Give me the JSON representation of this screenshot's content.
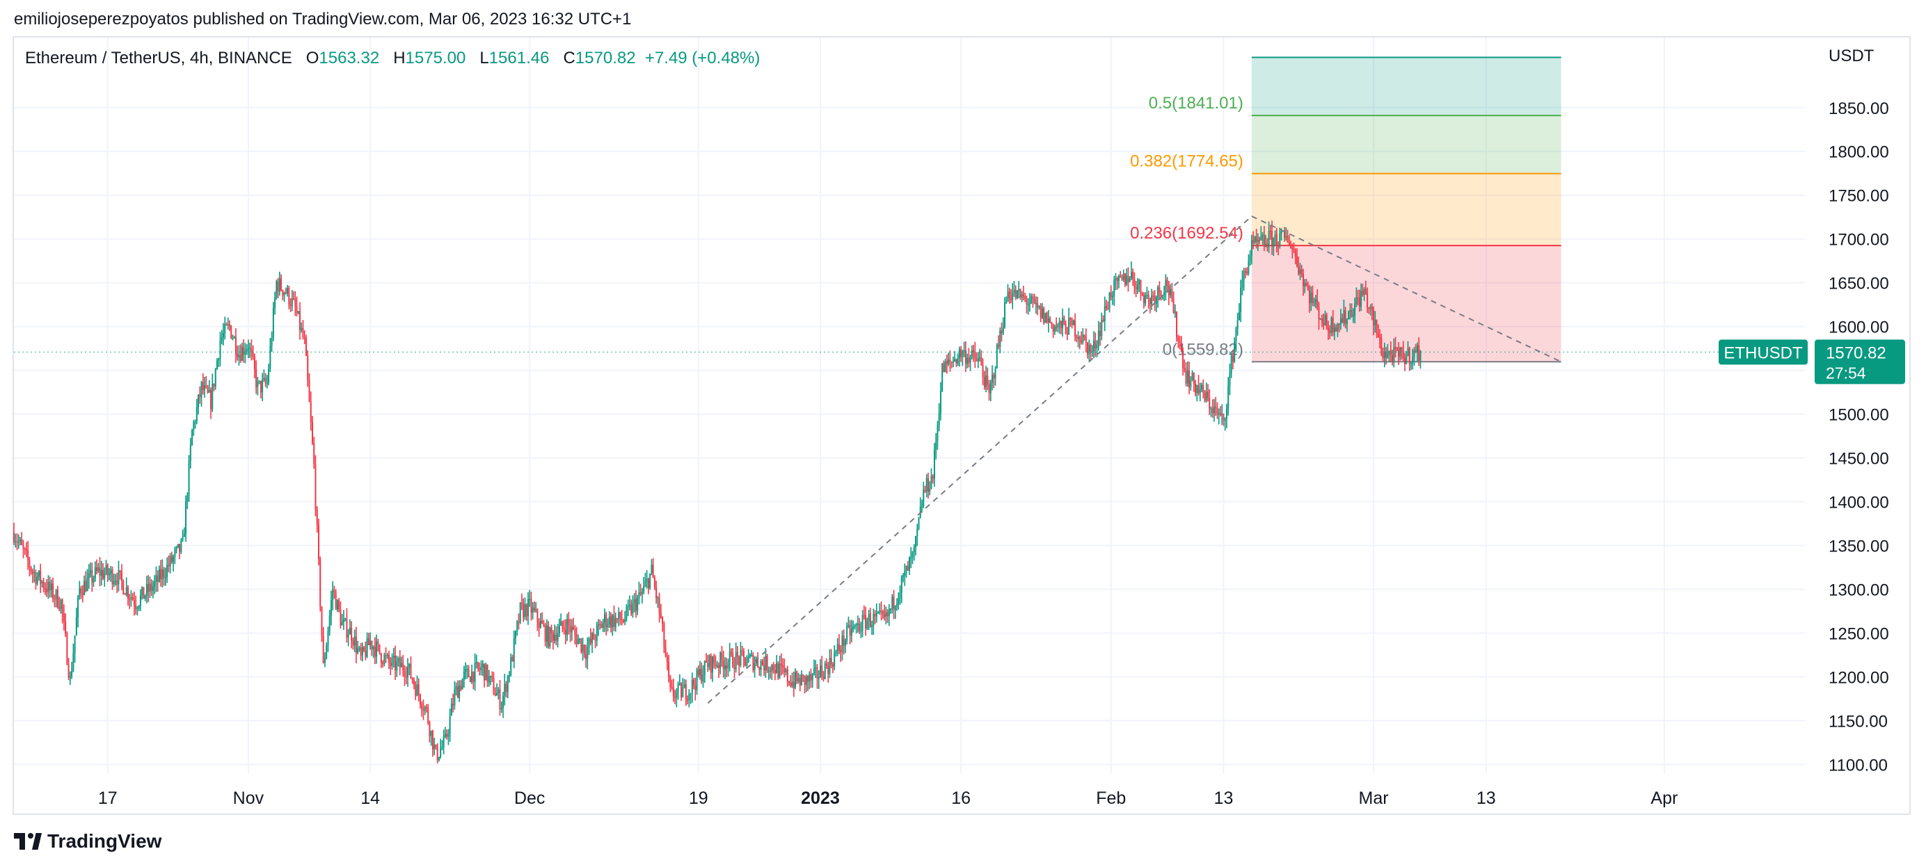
{
  "header": {
    "publisher": "emiliojoseperezpoyatos published on TradingView.com, Mar 06, 2023 16:32 UTC+1"
  },
  "legend": {
    "symbol": "Ethereum / TetherUS, 4h, BINANCE",
    "o_label": "O",
    "o": "1563.32",
    "h_label": "H",
    "h": "1575.00",
    "l_label": "L",
    "l": "1561.46",
    "c_label": "C",
    "c": "1570.82",
    "change": "+7.49 (+0.48%)"
  },
  "footer": {
    "brand": "TradingView"
  },
  "colors": {
    "up": "#089981",
    "down": "#f23645",
    "grid": "#f0f3fa",
    "fib0": "#787b86",
    "fib236": "#f23645",
    "fib382": "#ff9800",
    "fib5": "#4caf50",
    "fib618": "#089981"
  },
  "chart_data": {
    "type": "candlestick",
    "symbol": "ETHUSDT",
    "interval": "4h",
    "exchange": "BINANCE",
    "y_unit": "USDT",
    "ylim": [
      1090,
      1930
    ],
    "y_ticks": [
      "1850.00",
      "1800.00",
      "1750.00",
      "1700.00",
      "1650.00",
      "1600.00",
      "1550.00",
      "1500.00",
      "1450.00",
      "1400.00",
      "1350.00",
      "1300.00",
      "1250.00",
      "1200.00",
      "1150.00",
      "1100.00"
    ],
    "x_ticks": [
      {
        "label": "17",
        "date": "2022-10-17",
        "bold": false
      },
      {
        "label": "Nov",
        "date": "2022-11-01",
        "bold": false
      },
      {
        "label": "14",
        "date": "2022-11-14",
        "bold": false
      },
      {
        "label": "Dec",
        "date": "2022-12-01",
        "bold": false
      },
      {
        "label": "19",
        "date": "2022-12-19",
        "bold": false
      },
      {
        "label": "2023",
        "date": "2023-01-01",
        "bold": true
      },
      {
        "label": "16",
        "date": "2023-01-16",
        "bold": false
      },
      {
        "label": "Feb",
        "date": "2023-02-01",
        "bold": false
      },
      {
        "label": "13",
        "date": "2023-02-13",
        "bold": false
      },
      {
        "label": "Mar",
        "date": "2023-03-01",
        "bold": false
      },
      {
        "label": "13",
        "date": "2023-03-13",
        "bold": false
      },
      {
        "label": "Apr",
        "date": "2023-04-01",
        "bold": false
      }
    ],
    "price_path": [
      [
        "2022-10-07",
        1365
      ],
      [
        "2022-10-09",
        1320
      ],
      [
        "2022-10-12",
        1285
      ],
      [
        "2022-10-13",
        1195
      ],
      [
        "2022-10-14",
        1300
      ],
      [
        "2022-10-16",
        1320
      ],
      [
        "2022-10-18",
        1315
      ],
      [
        "2022-10-20",
        1285
      ],
      [
        "2022-10-22",
        1305
      ],
      [
        "2022-10-24",
        1335
      ],
      [
        "2022-10-25",
        1350
      ],
      [
        "2022-10-26",
        1480
      ],
      [
        "2022-10-27",
        1530
      ],
      [
        "2022-10-28",
        1515
      ],
      [
        "2022-10-29",
        1585
      ],
      [
        "2022-10-30",
        1600
      ],
      [
        "2022-10-31",
        1570
      ],
      [
        "2022-11-01",
        1580
      ],
      [
        "2022-11-02",
        1530
      ],
      [
        "2022-11-03",
        1535
      ],
      [
        "2022-11-04",
        1650
      ],
      [
        "2022-11-05",
        1640
      ],
      [
        "2022-11-06",
        1620
      ],
      [
        "2022-11-07",
        1580
      ],
      [
        "2022-11-08",
        1440
      ],
      [
        "2022-11-09",
        1210
      ],
      [
        "2022-11-10",
        1300
      ],
      [
        "2022-11-11",
        1260
      ],
      [
        "2022-11-12",
        1250
      ],
      [
        "2022-11-13",
        1220
      ],
      [
        "2022-11-14",
        1240
      ],
      [
        "2022-11-16",
        1215
      ],
      [
        "2022-11-18",
        1210
      ],
      [
        "2022-11-20",
        1160
      ],
      [
        "2022-11-21",
        1110
      ],
      [
        "2022-11-22",
        1125
      ],
      [
        "2022-11-23",
        1180
      ],
      [
        "2022-11-24",
        1200
      ],
      [
        "2022-11-26",
        1210
      ],
      [
        "2022-11-28",
        1170
      ],
      [
        "2022-11-29",
        1215
      ],
      [
        "2022-11-30",
        1275
      ],
      [
        "2022-12-01",
        1280
      ],
      [
        "2022-12-03",
        1245
      ],
      [
        "2022-12-05",
        1260
      ],
      [
        "2022-12-07",
        1230
      ],
      [
        "2022-12-09",
        1265
      ],
      [
        "2022-12-11",
        1265
      ],
      [
        "2022-12-13",
        1295
      ],
      [
        "2022-12-14",
        1320
      ],
      [
        "2022-12-15",
        1265
      ],
      [
        "2022-12-16",
        1180
      ],
      [
        "2022-12-18",
        1185
      ],
      [
        "2022-12-20",
        1215
      ],
      [
        "2022-12-23",
        1220
      ],
      [
        "2022-12-25",
        1218
      ],
      [
        "2022-12-27",
        1212
      ],
      [
        "2022-12-29",
        1195
      ],
      [
        "2022-12-31",
        1196
      ],
      [
        "2023-01-02",
        1215
      ],
      [
        "2023-01-04",
        1250
      ],
      [
        "2023-01-06",
        1265
      ],
      [
        "2023-01-08",
        1265
      ],
      [
        "2023-01-09",
        1290
      ],
      [
        "2023-01-11",
        1340
      ],
      [
        "2023-01-12",
        1410
      ],
      [
        "2023-01-13",
        1430
      ],
      [
        "2023-01-14",
        1550
      ],
      [
        "2023-01-16",
        1570
      ],
      [
        "2023-01-18",
        1560
      ],
      [
        "2023-01-19",
        1520
      ],
      [
        "2023-01-21",
        1640
      ],
      [
        "2023-01-23",
        1630
      ],
      [
        "2023-01-25",
        1610
      ],
      [
        "2023-01-26",
        1600
      ],
      [
        "2023-01-28",
        1600
      ],
      [
        "2023-01-30",
        1570
      ],
      [
        "2023-02-01",
        1640
      ],
      [
        "2023-02-03",
        1660
      ],
      [
        "2023-02-05",
        1630
      ],
      [
        "2023-02-07",
        1650
      ],
      [
        "2023-02-09",
        1545
      ],
      [
        "2023-02-11",
        1520
      ],
      [
        "2023-02-13",
        1490
      ],
      [
        "2023-02-15",
        1650
      ],
      [
        "2023-02-16",
        1690
      ],
      [
        "2023-02-18",
        1700
      ],
      [
        "2023-02-20",
        1700
      ],
      [
        "2023-02-22",
        1640
      ],
      [
        "2023-02-24",
        1600
      ],
      [
        "2023-02-26",
        1610
      ],
      [
        "2023-02-28",
        1640
      ],
      [
        "2023-03-02",
        1570
      ],
      [
        "2023-03-04",
        1565
      ],
      [
        "2023-03-06",
        1570.82
      ]
    ],
    "last_price": "1570.82",
    "price_label": {
      "symbol": "ETHUSDT",
      "price": "1570.82",
      "countdown": "27:54"
    },
    "trend_lines": [
      {
        "from": [
          "2022-12-20",
          1170
        ],
        "to": [
          "2023-02-16",
          1726
        ]
      },
      {
        "from": [
          "2023-02-16",
          1726
        ],
        "to": [
          "2023-03-21",
          1559.82
        ]
      }
    ],
    "fib_retracement": {
      "x_from": "2023-02-16",
      "x_to": "2023-03-21",
      "levels": [
        {
          "level": "0",
          "price": 1559.82,
          "label": "0(1559.82)"
        },
        {
          "level": "0.236",
          "price": 1692.54,
          "label": "0.236(1692.54)"
        },
        {
          "level": "0.382",
          "price": 1774.65,
          "label": "0.382(1774.65)"
        },
        {
          "level": "0.5",
          "price": 1841.01,
          "label": "0.5(1841.01)"
        },
        {
          "level": "0.618",
          "price": 1907.37,
          "label": ""
        }
      ]
    }
  }
}
